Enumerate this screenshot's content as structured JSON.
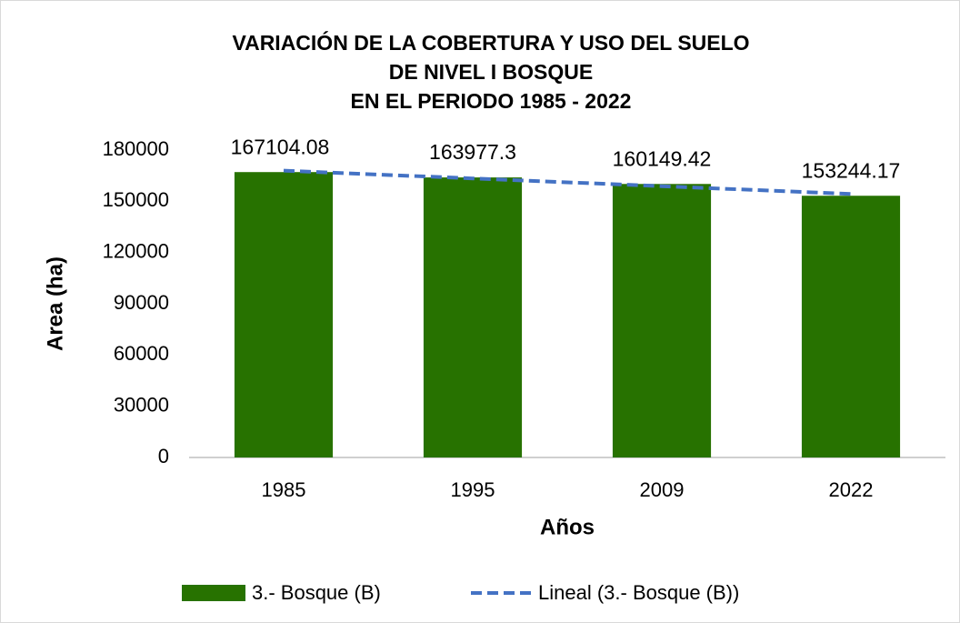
{
  "chart_data": {
    "type": "bar",
    "title": [
      "VARIACIÓN DE LA COBERTURA Y USO DEL SUELO",
      "DE NIVEL I BOSQUE",
      "EN EL PERIODO 1985 - 2022"
    ],
    "x_label": "Años",
    "y_label": "Area (ha)",
    "categories": [
      "1985",
      "1995",
      "2009",
      "2022"
    ],
    "series": [
      {
        "name": "3.- Bosque (B)",
        "color": "#277200",
        "type": "bar",
        "values": [
          167104.08,
          163977.3,
          160149.42,
          153244.17
        ]
      },
      {
        "name": "Lineal (3.- Bosque (B))",
        "color": "#4472c4",
        "type": "line",
        "dashed": true,
        "values": [
          167930,
          163389,
          158848,
          154308
        ]
      }
    ],
    "ylim": [
      0,
      180000
    ],
    "yticks": [
      0,
      30000,
      60000,
      90000,
      120000,
      150000,
      180000
    ],
    "grid": false,
    "legend": "bottom"
  }
}
